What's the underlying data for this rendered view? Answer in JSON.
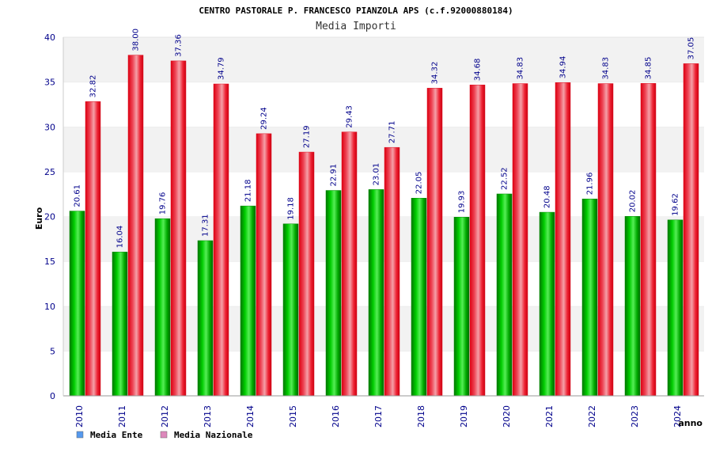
{
  "colors": {
    "ente_bar": "#00aa00",
    "nazionale_bar": "#ee1122",
    "ente_legend": "#5599ee",
    "nazionale_legend": "#dd88bb",
    "band": "#f2f2f2",
    "axis_text": "#00008b"
  },
  "chart_data": {
    "type": "bar",
    "title": "CENTRO PASTORALE P. FRANCESCO PIANZOLA APS (c.f.92000880184)",
    "subtitle": "Media Importi",
    "xlabel": "anno",
    "ylabel": "Euro",
    "ylim": [
      0,
      40
    ],
    "yticks": [
      0,
      5,
      10,
      15,
      20,
      25,
      30,
      35,
      40
    ],
    "categories": [
      "2010",
      "2011",
      "2012",
      "2013",
      "2014",
      "2015",
      "2016",
      "2017",
      "2018",
      "2019",
      "2020",
      "2021",
      "2022",
      "2023",
      "2024"
    ],
    "series": [
      {
        "name": "Media Ente",
        "values": [
          20.61,
          16.04,
          19.76,
          17.31,
          21.18,
          19.18,
          22.91,
          23.01,
          22.05,
          19.93,
          22.52,
          20.48,
          21.96,
          20.02,
          19.62
        ]
      },
      {
        "name": "Media Nazionale",
        "values": [
          32.82,
          38.0,
          37.36,
          34.79,
          29.24,
          27.19,
          29.43,
          27.71,
          34.32,
          34.68,
          34.83,
          34.94,
          34.83,
          34.85,
          37.05
        ]
      }
    ],
    "value_labels": [
      [
        "20.61",
        "16.04",
        "19.76",
        "17.31",
        "21.18",
        "19.18",
        "22.91",
        "23.01",
        "22.05",
        "19.93",
        "22.52",
        "20.48",
        "21.96",
        "20.02",
        "19.62"
      ],
      [
        "32.82",
        "38.00",
        "37.36",
        "34.79",
        "29.24",
        "27.19",
        "29.43",
        "27.71",
        "34.32",
        "34.68",
        "34.83",
        "34.94",
        "34.83",
        "34.85",
        "37.05"
      ]
    ],
    "legend_position": "bottom-left",
    "grid": "alternating horizontal bands"
  }
}
